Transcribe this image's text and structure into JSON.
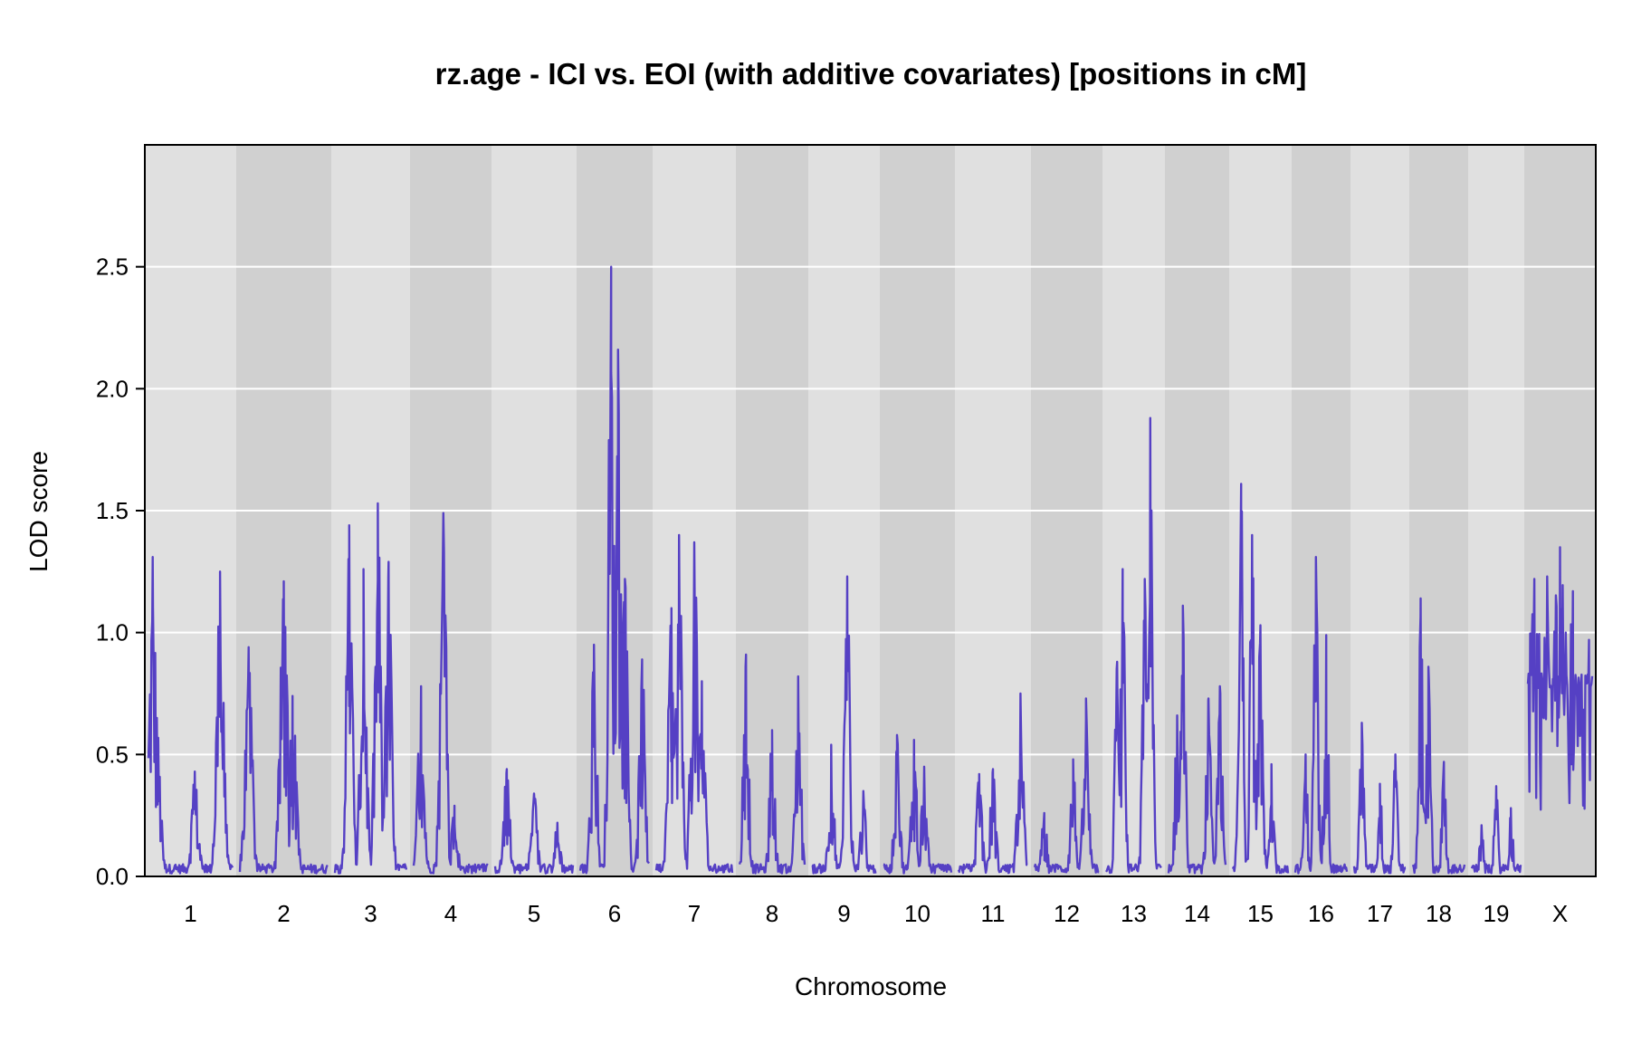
{
  "chart_data": {
    "type": "line",
    "title": "rz.age - ICI vs. EOI (with additive covariates) [positions in cM]",
    "xlabel": "Chromosome",
    "ylabel": "LOD score",
    "ylim": [
      0,
      3.0
    ],
    "y_ticks": [
      "0.0",
      "0.5",
      "1.0",
      "1.5",
      "2.0",
      "2.5"
    ],
    "y_tick_values": [
      0,
      0.5,
      1.0,
      1.5,
      2.0,
      2.5
    ],
    "grid": true,
    "colors": {
      "line": "#5540c4",
      "band_light": "#e0e0e0",
      "band_dark": "#d0d0d0",
      "grid": "#ffffff"
    },
    "chromosomes": [
      {
        "label": "1",
        "peaks": [
          [
            0.05,
            1.31
          ],
          [
            0.1,
            0.65
          ],
          [
            0.55,
            0.43
          ],
          [
            0.85,
            1.25
          ]
        ]
      },
      {
        "label": "2",
        "peaks": [
          [
            0.1,
            0.94
          ],
          [
            0.5,
            1.21
          ],
          [
            0.6,
            0.74
          ]
        ]
      },
      {
        "label": "3",
        "peaks": [
          [
            0.2,
            1.44
          ],
          [
            0.4,
            1.26
          ],
          [
            0.6,
            1.53
          ],
          [
            0.75,
            1.29
          ]
        ]
      },
      {
        "label": "4",
        "peaks": [
          [
            0.1,
            0.78
          ],
          [
            0.4,
            1.49
          ],
          [
            0.55,
            0.29
          ]
        ]
      },
      {
        "label": "5",
        "peaks": [
          [
            0.15,
            0.44
          ],
          [
            0.5,
            0.34
          ],
          [
            0.8,
            0.22
          ]
        ]
      },
      {
        "label": "6",
        "peaks": [
          [
            0.2,
            0.95
          ],
          [
            0.45,
            2.5
          ],
          [
            0.55,
            2.16
          ],
          [
            0.65,
            1.22
          ],
          [
            0.9,
            0.89
          ]
        ]
      },
      {
        "label": "7",
        "peaks": [
          [
            0.2,
            1.1
          ],
          [
            0.3,
            1.4
          ],
          [
            0.5,
            1.37
          ],
          [
            0.6,
            0.8
          ]
        ]
      },
      {
        "label": "8",
        "peaks": [
          [
            0.1,
            0.91
          ],
          [
            0.5,
            0.6
          ],
          [
            0.9,
            0.82
          ]
        ]
      },
      {
        "label": "9",
        "peaks": [
          [
            0.3,
            0.54
          ],
          [
            0.55,
            1.23
          ],
          [
            0.8,
            0.35
          ]
        ]
      },
      {
        "label": "10",
        "peaks": [
          [
            0.2,
            0.58
          ],
          [
            0.45,
            0.56
          ],
          [
            0.6,
            0.45
          ]
        ]
      },
      {
        "label": "11",
        "peaks": [
          [
            0.3,
            0.42
          ],
          [
            0.5,
            0.44
          ],
          [
            0.9,
            0.75
          ]
        ]
      },
      {
        "label": "12",
        "peaks": [
          [
            0.15,
            0.26
          ],
          [
            0.6,
            0.48
          ],
          [
            0.8,
            0.73
          ]
        ]
      },
      {
        "label": "13",
        "peaks": [
          [
            0.2,
            0.88
          ],
          [
            0.3,
            1.26
          ],
          [
            0.8,
            1.88
          ],
          [
            0.7,
            1.22
          ]
        ]
      },
      {
        "label": "14",
        "peaks": [
          [
            0.15,
            0.66
          ],
          [
            0.25,
            1.11
          ],
          [
            0.7,
            0.73
          ],
          [
            0.9,
            0.78
          ]
        ]
      },
      {
        "label": "15",
        "peaks": [
          [
            0.15,
            1.61
          ],
          [
            0.35,
            1.4
          ],
          [
            0.5,
            1.03
          ],
          [
            0.7,
            0.46
          ]
        ]
      },
      {
        "label": "16",
        "peaks": [
          [
            0.2,
            0.5
          ],
          [
            0.4,
            1.31
          ],
          [
            0.6,
            0.99
          ]
        ]
      },
      {
        "label": "17",
        "peaks": [
          [
            0.15,
            0.63
          ],
          [
            0.5,
            0.38
          ],
          [
            0.8,
            0.5
          ]
        ]
      },
      {
        "label": "18",
        "peaks": [
          [
            0.15,
            1.14
          ],
          [
            0.3,
            0.86
          ],
          [
            0.6,
            0.47
          ]
        ]
      },
      {
        "label": "19",
        "peaks": [
          [
            0.2,
            0.21
          ],
          [
            0.5,
            0.37
          ],
          [
            0.8,
            0.28
          ]
        ]
      },
      {
        "label": "X",
        "peaks": [
          [
            0.1,
            1.22
          ],
          [
            0.3,
            1.23
          ],
          [
            0.5,
            1.35
          ],
          [
            0.7,
            1.17
          ],
          [
            0.95,
            0.97
          ]
        ]
      }
    ]
  }
}
